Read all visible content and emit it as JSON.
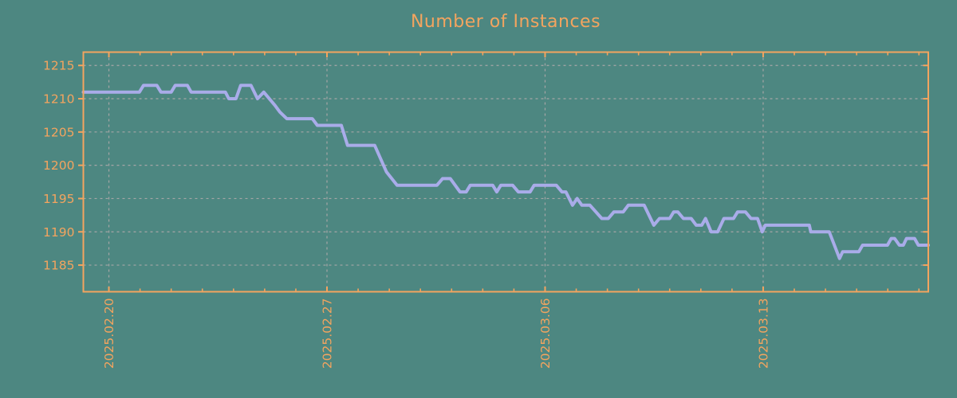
{
  "chart_data": {
    "type": "line",
    "title": "Number of Instances",
    "xlabel": "",
    "ylabel": "",
    "x_unit": "days since 2025-02-20",
    "xlim": [
      -0.82,
      26.3
    ],
    "ylim": [
      1181,
      1217
    ],
    "y_ticks": [
      1185,
      1190,
      1195,
      1200,
      1205,
      1210,
      1215
    ],
    "x_major_ticks": [
      {
        "t": 0,
        "label": "2025.02.20"
      },
      {
        "t": 7,
        "label": "2025.02.27"
      },
      {
        "t": 14,
        "label": "2025.03.06"
      },
      {
        "t": 21,
        "label": "2025.03.13"
      }
    ],
    "x_minor_tick_interval": 1,
    "grid": true,
    "legend": "none",
    "colors": {
      "background": "#4d8781",
      "axis": "#f3a45f",
      "labels": "#f3a45f",
      "title": "#f3a45f",
      "grid": "#a6a6a6",
      "line": "#a9ace9"
    },
    "points": [
      [
        -0.82,
        1211
      ],
      [
        0.98,
        1211
      ],
      [
        1.11,
        1212
      ],
      [
        1.54,
        1212
      ],
      [
        1.67,
        1211
      ],
      [
        2.0,
        1211
      ],
      [
        2.13,
        1212
      ],
      [
        2.52,
        1212
      ],
      [
        2.64,
        1211
      ],
      [
        3.74,
        1211
      ],
      [
        3.85,
        1210
      ],
      [
        4.08,
        1210
      ],
      [
        4.23,
        1212
      ],
      [
        4.56,
        1212
      ],
      [
        4.77,
        1210
      ],
      [
        4.97,
        1211
      ],
      [
        5.33,
        1209
      ],
      [
        5.49,
        1208
      ],
      [
        5.71,
        1207
      ],
      [
        6.53,
        1207
      ],
      [
        6.69,
        1206
      ],
      [
        7.46,
        1206
      ],
      [
        7.66,
        1203
      ],
      [
        8.53,
        1203
      ],
      [
        8.91,
        1199
      ],
      [
        9.25,
        1197
      ],
      [
        10.53,
        1197
      ],
      [
        10.71,
        1198
      ],
      [
        10.96,
        1198
      ],
      [
        11.27,
        1196
      ],
      [
        11.47,
        1196
      ],
      [
        11.6,
        1197
      ],
      [
        12.32,
        1197
      ],
      [
        12.45,
        1196
      ],
      [
        12.58,
        1197
      ],
      [
        12.96,
        1197
      ],
      [
        13.14,
        1196
      ],
      [
        13.52,
        1196
      ],
      [
        13.65,
        1197
      ],
      [
        14.36,
        1197
      ],
      [
        14.54,
        1196
      ],
      [
        14.67,
        1196
      ],
      [
        14.88,
        1194
      ],
      [
        15.03,
        1195
      ],
      [
        15.18,
        1194
      ],
      [
        15.44,
        1194
      ],
      [
        15.82,
        1192
      ],
      [
        16.03,
        1192
      ],
      [
        16.21,
        1193
      ],
      [
        16.51,
        1193
      ],
      [
        16.67,
        1194
      ],
      [
        17.18,
        1194
      ],
      [
        17.49,
        1191
      ],
      [
        17.67,
        1192
      ],
      [
        18.0,
        1192
      ],
      [
        18.13,
        1193
      ],
      [
        18.26,
        1193
      ],
      [
        18.44,
        1192
      ],
      [
        18.69,
        1192
      ],
      [
        18.85,
        1191
      ],
      [
        19.03,
        1191
      ],
      [
        19.15,
        1192
      ],
      [
        19.33,
        1190
      ],
      [
        19.54,
        1190
      ],
      [
        19.74,
        1192
      ],
      [
        20.05,
        1192
      ],
      [
        20.18,
        1193
      ],
      [
        20.43,
        1193
      ],
      [
        20.61,
        1192
      ],
      [
        20.82,
        1192
      ],
      [
        20.97,
        1190
      ],
      [
        21.07,
        1191
      ],
      [
        22.48,
        1191
      ],
      [
        22.53,
        1190
      ],
      [
        23.12,
        1190
      ],
      [
        23.45,
        1186
      ],
      [
        23.55,
        1187
      ],
      [
        24.07,
        1187
      ],
      [
        24.19,
        1188
      ],
      [
        24.99,
        1188
      ],
      [
        25.11,
        1189
      ],
      [
        25.22,
        1189
      ],
      [
        25.37,
        1188
      ],
      [
        25.5,
        1188
      ],
      [
        25.6,
        1189
      ],
      [
        25.86,
        1189
      ],
      [
        25.98,
        1188
      ],
      [
        26.3,
        1188
      ]
    ]
  }
}
